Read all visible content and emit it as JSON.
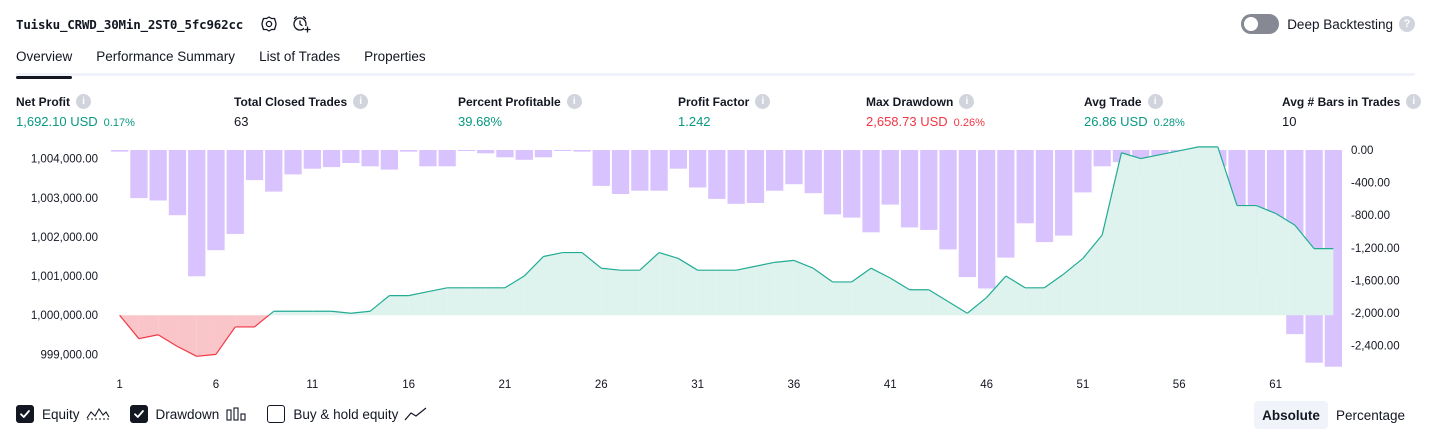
{
  "header": {
    "strategy_name": "Tuisku_CRWD_30Min_2ST0_5fc962cc",
    "deep_backtesting_label": "Deep Backtesting",
    "deep_backtesting_enabled": false
  },
  "tabs": [
    {
      "label": "Overview",
      "active": true
    },
    {
      "label": "Performance Summary",
      "active": false
    },
    {
      "label": "List of Trades",
      "active": false
    },
    {
      "label": "Properties",
      "active": false
    }
  ],
  "metrics": [
    {
      "label": "Net Profit",
      "value": "1,692.10 USD",
      "pct": "0.17%",
      "tone": "green"
    },
    {
      "label": "Total Closed Trades",
      "value": "63",
      "pct": "",
      "tone": "neutral"
    },
    {
      "label": "Percent Profitable",
      "value": "39.68%",
      "pct": "",
      "tone": "green"
    },
    {
      "label": "Profit Factor",
      "value": "1.242",
      "pct": "",
      "tone": "green"
    },
    {
      "label": "Max Drawdown",
      "value": "2,658.73 USD",
      "pct": "0.26%",
      "tone": "red"
    },
    {
      "label": "Avg Trade",
      "value": "26.86 USD",
      "pct": "0.28%",
      "tone": "green"
    },
    {
      "label": "Avg # Bars in Trades",
      "value": "10",
      "pct": "",
      "tone": "neutral"
    }
  ],
  "chart_data": {
    "type": "line",
    "x_ticks": [
      "1",
      "6",
      "11",
      "16",
      "21",
      "26",
      "31",
      "36",
      "41",
      "46",
      "51",
      "56",
      "61"
    ],
    "left_axis_ticks": [
      "1,004,000.00",
      "1,003,000.00",
      "1,002,000.00",
      "1,001,000.00",
      "1,000,000.00",
      "999,000.00"
    ],
    "right_axis_ticks": [
      "0.00",
      "-400.00",
      "-800.00",
      "-1,200.00",
      "-1,600.00",
      "-2,000.00",
      "-2,400.00"
    ],
    "left_ylim": [
      998600,
      1004220
    ],
    "right_ylim": [
      -2700,
      0
    ],
    "baseline": 1000000,
    "series": [
      {
        "name": "Equity",
        "axis": "left",
        "x": [
          1,
          2,
          3,
          4,
          5,
          6,
          7,
          8,
          9,
          10,
          11,
          12,
          13,
          14,
          15,
          16,
          17,
          18,
          19,
          20,
          21,
          22,
          23,
          24,
          25,
          26,
          27,
          28,
          29,
          30,
          31,
          32,
          33,
          34,
          35,
          36,
          37,
          38,
          39,
          40,
          41,
          42,
          43,
          44,
          45,
          46,
          47,
          48,
          49,
          50,
          51,
          52,
          53,
          54,
          55,
          56,
          57,
          58,
          59,
          60,
          61,
          62,
          63,
          64
        ],
        "values": [
          1000000,
          999400,
          999500,
          999200,
          998950,
          999000,
          999700,
          999700,
          1000100,
          1000100,
          1000100,
          1000100,
          1000050,
          1000100,
          1000500,
          1000500,
          1000600,
          1000700,
          1000700,
          1000700,
          1000700,
          1001000,
          1001500,
          1001600,
          1001600,
          1001200,
          1001150,
          1001150,
          1001600,
          1001450,
          1001150,
          1001150,
          1001150,
          1001250,
          1001350,
          1001400,
          1001200,
          1000850,
          1000850,
          1001200,
          1000950,
          1000650,
          1000650,
          1000350,
          1000050,
          1000450,
          1001000,
          1000700,
          1000700,
          1001050,
          1001450,
          1002050,
          1004150,
          1004000,
          1004100,
          1004200,
          1004300,
          1004300,
          1002800,
          1002800,
          1002600,
          1002300,
          1001700,
          1001700
        ]
      },
      {
        "name": "Drawdown",
        "axis": "right",
        "x": [
          1,
          2,
          3,
          4,
          5,
          6,
          7,
          8,
          9,
          10,
          11,
          12,
          13,
          14,
          15,
          16,
          17,
          18,
          19,
          20,
          21,
          22,
          23,
          24,
          25,
          26,
          27,
          28,
          29,
          30,
          31,
          32,
          33,
          34,
          35,
          36,
          37,
          38,
          39,
          40,
          41,
          42,
          43,
          44,
          45,
          46,
          47,
          48,
          49,
          50,
          51,
          52,
          53,
          54,
          55,
          56,
          57,
          58,
          59,
          60,
          61,
          62,
          63,
          64
        ],
        "values": [
          -20,
          -590,
          -620,
          -800,
          -1550,
          -1230,
          -1030,
          -370,
          -510,
          -300,
          -230,
          -210,
          -160,
          -200,
          -240,
          -20,
          -200,
          -200,
          0,
          -40,
          -90,
          -120,
          -90,
          0,
          -20,
          -440,
          -540,
          -500,
          -500,
          -230,
          -460,
          -600,
          -660,
          -650,
          -500,
          -420,
          -530,
          -790,
          -830,
          -1010,
          -670,
          -950,
          -980,
          -1220,
          -1560,
          -1700,
          -1320,
          -900,
          -1130,
          -1050,
          -520,
          -200,
          -150,
          -310,
          -390,
          -210,
          -220,
          -200,
          -1480,
          -1530,
          -1740,
          -2260,
          -2610,
          -2660
        ]
      }
    ],
    "legend": [
      "Equity",
      "Drawdown",
      "Buy & hold equity"
    ],
    "colors": {
      "equity_line": "#22ab94",
      "equity_fill": "#dff3ee",
      "below_line": "#f23645",
      "below_fill": "#f9c5c9",
      "drawdown_bar": "#b388ff",
      "drawdown_bar_alpha": 0.5
    }
  },
  "legend": {
    "equity_label": "Equity",
    "equity_checked": true,
    "drawdown_label": "Drawdown",
    "drawdown_checked": true,
    "buyhold_label": "Buy & hold equity",
    "buyhold_checked": false,
    "glyphs": [
      "wave-line-icon",
      "bars-icon",
      "trend-line-icon"
    ]
  },
  "modes": [
    {
      "label": "Absolute",
      "active": true
    },
    {
      "label": "Percentage",
      "active": false
    }
  ]
}
